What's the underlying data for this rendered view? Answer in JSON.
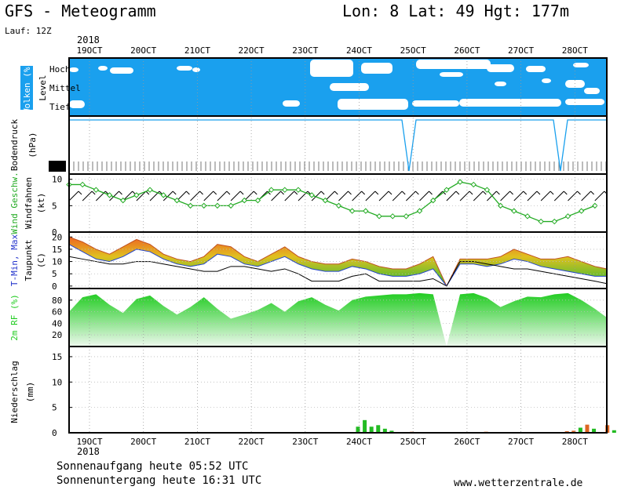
{
  "header": {
    "title": "GFS - Meteogramm",
    "coords": "Lon: 8 Lat: 49 Hgt: 177m",
    "lauf": "Lauf: 12Z",
    "year_top": "2018",
    "year_bottom": "2018"
  },
  "footer": {
    "sunrise": "Sonnenaufgang heute 05:52 UTC",
    "sunset": "Sonnenuntergang heute 16:31 UTC",
    "website": "www.wetterzentrale.de"
  },
  "colors": {
    "cloud_bg": "#1aa0ee",
    "pressure_line": "#1aa0ee",
    "wind_line": "#22aa22",
    "dew_line": "#000000",
    "temp_fill_low": "#33bb33",
    "temp_fill_high": "#ee6622",
    "rh_fill": "#22cc22",
    "precip_green": "#22bb22",
    "precip_orange": "#dd6622"
  },
  "chart_data": [
    {
      "type": "heatmap",
      "panel": "clouds",
      "ylabel": "Wolken (%)",
      "ylabel2": "Level",
      "levels": [
        "Hoch",
        "Mittel",
        "Tief"
      ]
    },
    {
      "type": "line",
      "panel": "pressure",
      "ylabel": "Bodendruck",
      "unit": "(hPa)",
      "x": [
        "19OCT",
        "20OCT",
        "21OCT",
        "22OCT",
        "23OCT",
        "24OCT",
        "25OCT",
        "26OCT",
        "27OCT",
        "28OCT"
      ],
      "note": "near-flat line with two sharp drops near 25OCT and 27OCT"
    },
    {
      "type": "line",
      "panel": "wind",
      "ylabel": "Wind Geschw.",
      "ylabel2": "Windfahnen",
      "unit": "(kt)",
      "yticks": [
        0,
        5,
        10
      ],
      "ylim": [
        0,
        11
      ],
      "x": [
        0,
        0.25,
        0.5,
        0.75,
        1,
        1.25,
        1.5,
        1.75,
        2,
        2.25,
        2.5,
        2.75,
        3,
        3.25,
        3.5,
        3.75,
        4,
        4.25,
        4.5,
        4.75,
        5,
        5.25,
        5.5,
        5.75,
        6,
        6.25,
        6.5,
        6.75,
        7,
        7.25,
        7.5,
        7.75,
        8,
        8.25,
        8.5,
        8.75,
        9,
        9.25,
        9.5,
        9.75,
        10,
        10.25
      ],
      "values": [
        9,
        9,
        8,
        7,
        6,
        7,
        8,
        7,
        6,
        5,
        5,
        5,
        5,
        6,
        6,
        8,
        8,
        8,
        7,
        6,
        5,
        4,
        4,
        3,
        3,
        3,
        4,
        6,
        8,
        9.5,
        9,
        8,
        5,
        4,
        3,
        2,
        2,
        3,
        4,
        5,
        7,
        6
      ]
    },
    {
      "type": "area",
      "panel": "temperature",
      "ylabel": "T-Min, Max",
      "ylabel2": "Taupunkt",
      "unit": "(C)",
      "yticks": [
        0,
        5,
        10,
        15,
        20
      ],
      "ylim": [
        -1,
        22
      ],
      "x": [
        0,
        0.25,
        0.5,
        0.75,
        1,
        1.25,
        1.5,
        1.75,
        2,
        2.25,
        2.5,
        2.75,
        3,
        3.25,
        3.5,
        3.75,
        4,
        4.25,
        4.5,
        4.75,
        5,
        5.25,
        5.5,
        5.75,
        6,
        6.25,
        6.5,
        6.75,
        7,
        7.25,
        7.5,
        7.75,
        8,
        8.25,
        8.5,
        8.75,
        9,
        9.25,
        9.5,
        9.75,
        10,
        10.25
      ],
      "tmin": [
        17,
        14,
        11,
        10,
        12,
        15,
        14,
        11,
        9,
        8,
        9,
        13,
        12,
        9,
        8,
        10,
        12,
        9,
        7,
        6,
        6,
        8,
        7,
        5,
        4,
        4,
        5,
        7,
        0,
        9,
        9,
        8,
        9,
        11,
        10,
        8,
        7,
        6,
        5,
        4,
        4,
        5
      ],
      "tmax": [
        20,
        18,
        15,
        13,
        16,
        19,
        17,
        13,
        11,
        10,
        12,
        17,
        16,
        12,
        10,
        13,
        16,
        12,
        10,
        9,
        9,
        11,
        10,
        8,
        7,
        7,
        9,
        12,
        0,
        11,
        11,
        11,
        12,
        15,
        13,
        11,
        11,
        12,
        10,
        8,
        7,
        8
      ],
      "dew": [
        12,
        11,
        10,
        9,
        9,
        10,
        10,
        9,
        8,
        7,
        6,
        6,
        8,
        8,
        7,
        6,
        7,
        5,
        2,
        2,
        2,
        4,
        5,
        2,
        2,
        2,
        2,
        3,
        0,
        10,
        10,
        9,
        8,
        7,
        7,
        6,
        5,
        4,
        3,
        2,
        1,
        1
      ]
    },
    {
      "type": "area",
      "panel": "humidity",
      "ylabel": "2m RF (%)",
      "yticks": [
        20,
        40,
        60,
        80
      ],
      "ylim": [
        0,
        100
      ],
      "x": [
        0,
        0.25,
        0.5,
        0.75,
        1,
        1.25,
        1.5,
        1.75,
        2,
        2.25,
        2.5,
        2.75,
        3,
        3.25,
        3.5,
        3.75,
        4,
        4.25,
        4.5,
        4.75,
        5,
        5.25,
        5.5,
        5.75,
        6,
        6.25,
        6.5,
        6.75,
        7,
        7.25,
        7.5,
        7.75,
        8,
        8.25,
        8.5,
        8.75,
        9,
        9.25,
        9.5,
        9.75,
        10,
        10.25
      ],
      "values": [
        60,
        85,
        90,
        72,
        58,
        82,
        88,
        70,
        55,
        68,
        85,
        65,
        48,
        55,
        63,
        75,
        60,
        78,
        85,
        72,
        62,
        80,
        86,
        88,
        90,
        90,
        92,
        90,
        0,
        90,
        92,
        84,
        68,
        78,
        86,
        85,
        90,
        92,
        80,
        65,
        50,
        72
      ]
    },
    {
      "type": "bar",
      "panel": "precipitation",
      "ylabel": "Niederschlag",
      "unit": "(mm)",
      "yticks": [
        0,
        5,
        10,
        15
      ],
      "ylim": [
        0,
        17
      ],
      "x": [
        "19OCT",
        "20OCT",
        "21OCT",
        "22OCT",
        "23OCT",
        "24OCT",
        "25OCT",
        "26OCT",
        "27OCT",
        "28OCT"
      ],
      "bars": [
        {
          "x": 5.0,
          "value": 1.2,
          "kind": "rain"
        },
        {
          "x": 5.125,
          "value": 2.5,
          "kind": "rain"
        },
        {
          "x": 5.25,
          "value": 1.2,
          "kind": "rain"
        },
        {
          "x": 5.375,
          "value": 1.5,
          "kind": "rain"
        },
        {
          "x": 5.5,
          "value": 0.8,
          "kind": "rain"
        },
        {
          "x": 5.625,
          "value": 0.4,
          "kind": "rain"
        },
        {
          "x": 6.0,
          "value": 0.2,
          "kind": "conv"
        },
        {
          "x": 7.375,
          "value": 0.2,
          "kind": "conv"
        },
        {
          "x": 8.875,
          "value": 0.3,
          "kind": "conv"
        },
        {
          "x": 9.0,
          "value": 0.4,
          "kind": "conv"
        },
        {
          "x": 9.125,
          "value": 1.0,
          "kind": "rain"
        },
        {
          "x": 9.25,
          "value": 1.6,
          "kind": "conv"
        },
        {
          "x": 9.375,
          "value": 0.8,
          "kind": "rain"
        },
        {
          "x": 9.625,
          "value": 1.5,
          "kind": "conv"
        },
        {
          "x": 9.75,
          "value": 0.5,
          "kind": "rain"
        }
      ]
    }
  ],
  "xaxis": {
    "ticks": [
      "19OCT",
      "20OCT",
      "21OCT",
      "22OCT",
      "23OCT",
      "24OCT",
      "25OCT",
      "26OCT",
      "27OCT",
      "28OCT"
    ]
  }
}
